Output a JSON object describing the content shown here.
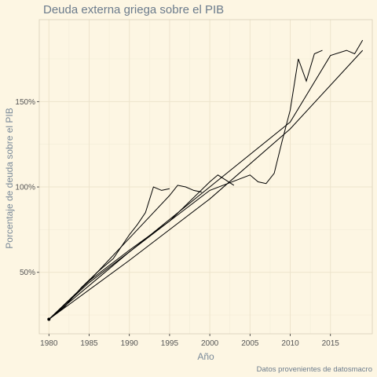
{
  "chart_data": {
    "type": "line",
    "title": "Deuda externa griega sobre el PIB",
    "xlabel": "Año",
    "ylabel": "Porcentaje de deuda sobre el PIB",
    "caption": "Datos provenientes de datosmacro",
    "xlim": [
      1978.8,
      2020.2
    ],
    "ylim": [
      14,
      198
    ],
    "x_ticks": [
      {
        "value": 1980,
        "label": "1980"
      },
      {
        "value": 1985,
        "label": "1985"
      },
      {
        "value": 1990,
        "label": "1990"
      },
      {
        "value": 1995,
        "label": "1995"
      },
      {
        "value": 2000,
        "label": "2000"
      },
      {
        "value": 2005,
        "label": "2005"
      },
      {
        "value": 2010,
        "label": "2010"
      },
      {
        "value": 2015,
        "label": "2015"
      }
    ],
    "y_ticks": [
      {
        "value": 50,
        "label": "50%"
      },
      {
        "value": 100,
        "label": "100%"
      },
      {
        "value": 150,
        "label": "150%"
      }
    ],
    "grid": true,
    "series": [
      {
        "x": [
          1980,
          1982,
          1984,
          1986,
          1988,
          1990,
          1991,
          1992,
          1993,
          1994,
          1995
        ],
        "values": [
          22.5,
          30,
          41,
          50,
          58,
          72,
          78,
          85,
          100,
          98,
          99
        ]
      },
      {
        "x": [
          1980,
          1985,
          1990,
          1995,
          1996,
          1997,
          1998,
          1999
        ],
        "values": [
          22.5,
          45,
          70,
          95,
          101,
          100,
          98,
          97
        ]
      },
      {
        "x": [
          1980,
          1985,
          1990,
          1995,
          2000,
          2001,
          2002,
          2003
        ],
        "values": [
          22.5,
          44,
          62,
          80,
          103,
          107,
          104,
          101
        ]
      },
      {
        "x": [
          1980,
          1985,
          1990,
          1995,
          2000,
          2005,
          2006,
          2007,
          2008,
          2009,
          2010,
          2011,
          2012,
          2013,
          2014
        ],
        "values": [
          22.5,
          45,
          63,
          80,
          98,
          107,
          103,
          102,
          108,
          127,
          145,
          175,
          162,
          178,
          180
        ]
      },
      {
        "x": [
          1980,
          1990,
          2000,
          2010,
          2015,
          2017,
          2018,
          2019
        ],
        "values": [
          22.5,
          62,
          100,
          138,
          177,
          180,
          178,
          186
        ]
      },
      {
        "x": [
          1980,
          1990,
          2000,
          2010,
          2019
        ],
        "values": [
          22.5,
          57,
          93,
          134,
          180
        ]
      }
    ]
  }
}
